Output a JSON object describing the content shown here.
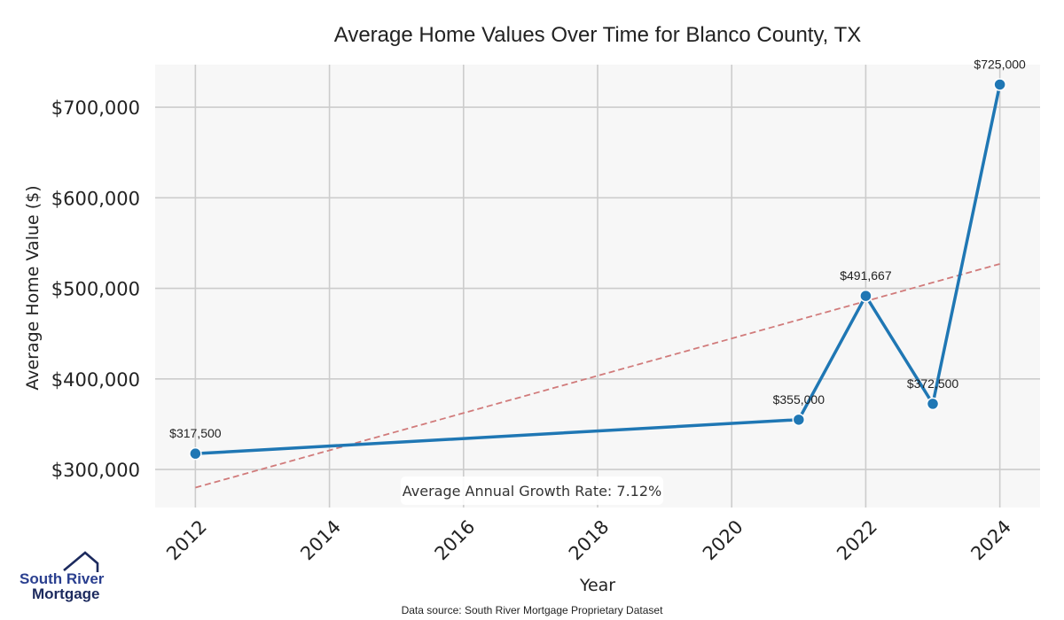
{
  "colors": {
    "line": "#1f77b4",
    "trend": "#d17b7b",
    "grid": "#cccccc",
    "plot_bg": "#f7f7f7",
    "logo_blue": "#2a3f8f",
    "logo_dark": "#1c2a5e"
  },
  "chart_data": {
    "type": "line",
    "title": "Average Home Values Over Time for Blanco County, TX",
    "xlabel": "Year",
    "ylabel": "Average Home Value ($)",
    "xlim": [
      2011.4,
      2024.6
    ],
    "ylim": [
      258000,
      747000
    ],
    "x_ticks": [
      2012,
      2014,
      2016,
      2018,
      2020,
      2022,
      2024
    ],
    "y_ticks": [
      300000,
      400000,
      500000,
      600000,
      700000
    ],
    "y_tick_labels": [
      "$300,000",
      "$400,000",
      "$500,000",
      "$600,000",
      "$700,000"
    ],
    "grid": true,
    "series": [
      {
        "x": [
          2012,
          2021,
          2022,
          2023,
          2024
        ],
        "y": [
          317500,
          355000,
          491667,
          372500,
          725000
        ],
        "labels": [
          "$317,500",
          "$355,000",
          "$491,667",
          "$372,500",
          "$725,000"
        ]
      }
    ],
    "trendline": {
      "x": [
        2012,
        2024
      ],
      "y": [
        280000,
        527000
      ]
    },
    "annotation": "Average Annual Growth Rate: 7.12%"
  },
  "footer": {
    "source": "Data source: South River Mortgage Proprietary Dataset"
  },
  "logo": {
    "line1": "South River",
    "line2": "Mortgage",
    "icon": "house-icon"
  }
}
